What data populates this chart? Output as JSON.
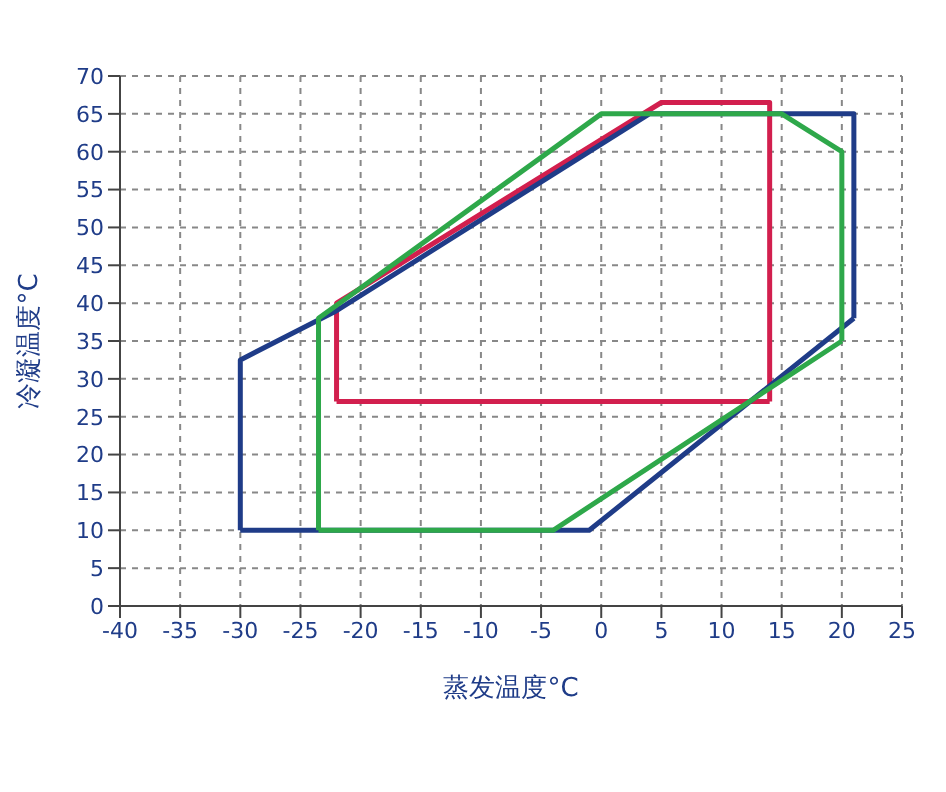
{
  "chart_data": {
    "type": "line",
    "xlabel": "蒸发温度°C",
    "ylabel": "冷凝温度°C",
    "xlim": [
      -40,
      25
    ],
    "xticks": [
      -40,
      -35,
      -30,
      -25,
      -20,
      -15,
      -10,
      -5,
      0,
      5,
      10,
      15,
      20,
      25
    ],
    "ylim": [
      0,
      70
    ],
    "yticks": [
      0,
      5,
      10,
      15,
      20,
      25,
      30,
      35,
      40,
      45,
      50,
      55,
      60,
      65,
      70
    ],
    "grid": true,
    "legend": false,
    "marker": "none",
    "line_style": "solid",
    "series": [
      {
        "color": "#d21f4e",
        "x": [
          -22,
          -22,
          5,
          14,
          14
        ],
        "values": [
          27,
          40,
          66.5,
          66.5,
          27
        ]
      },
      {
        "color": "#d21f4e",
        "x": [
          -22,
          14
        ],
        "values": [
          27,
          27
        ]
      },
      {
        "color": "#1f3c88",
        "x": [
          -30,
          -30,
          -22,
          4,
          21,
          21
        ],
        "values": [
          10,
          32.5,
          39,
          65,
          65,
          38
        ]
      },
      {
        "color": "#1f3c88",
        "x": [
          -30,
          -1,
          21
        ],
        "values": [
          10,
          10,
          38
        ]
      },
      {
        "color": "#2ea84a",
        "x": [
          -23.5,
          -23.5,
          -20,
          0,
          15,
          20,
          20
        ],
        "values": [
          10,
          38,
          42,
          65,
          65,
          60,
          35
        ]
      },
      {
        "color": "#2ea84a",
        "x": [
          -23.5,
          -4,
          20
        ],
        "values": [
          10,
          10,
          35
        ]
      }
    ]
  }
}
